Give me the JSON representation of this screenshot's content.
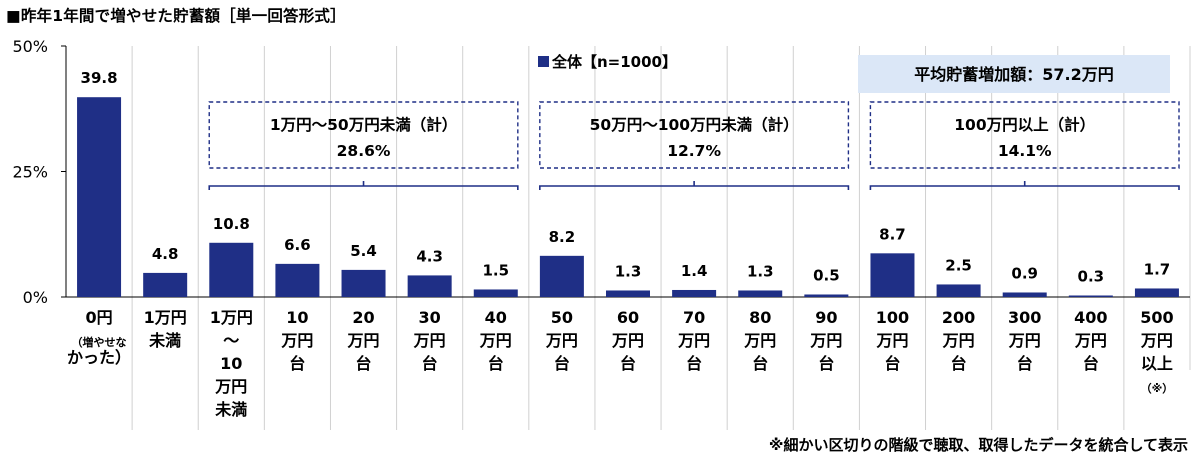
{
  "title": "■昨年1年間で増やせた貯蓄額［単一回答形式］",
  "footnote": "※細かい区切りの階級で聴取、取得したデータを統合して表示",
  "average_label": "平均貯蓄増加額：57.2万円",
  "colors": {
    "bar": "#1f2f86",
    "bracket": "#1f2f86",
    "average_box": "#dbe7f7",
    "grid_line": "#000000"
  },
  "chart_data": {
    "type": "bar",
    "series": [
      {
        "name": "全体【n=1000】",
        "values": [
          39.8,
          4.8,
          10.8,
          6.6,
          5.4,
          4.3,
          1.5,
          8.2,
          1.3,
          1.4,
          1.3,
          0.5,
          8.7,
          2.5,
          0.9,
          0.3,
          1.7
        ]
      }
    ],
    "categories": [
      [
        "0円",
        "（増やせな",
        "かった）"
      ],
      [
        "1万円",
        "未満"
      ],
      [
        "1万円",
        "～",
        "10",
        "万円",
        "未満"
      ],
      [
        "10",
        "万円",
        "台"
      ],
      [
        "20",
        "万円",
        "台"
      ],
      [
        "30",
        "万円",
        "台"
      ],
      [
        "40",
        "万円",
        "台"
      ],
      [
        "50",
        "万円",
        "台"
      ],
      [
        "60",
        "万円",
        "台"
      ],
      [
        "70",
        "万円",
        "台"
      ],
      [
        "80",
        "万円",
        "台"
      ],
      [
        "90",
        "万円",
        "台"
      ],
      [
        "100",
        "万円",
        "台"
      ],
      [
        "200",
        "万円",
        "台"
      ],
      [
        "300",
        "万円",
        "台"
      ],
      [
        "400",
        "万円",
        "台"
      ],
      [
        "500",
        "万円",
        "以上",
        "（※）"
      ]
    ],
    "yticks": [
      "0%",
      "25%",
      "50%"
    ],
    "ylim": [
      0,
      50
    ],
    "groups": [
      {
        "label": "1万円～50万円未満（計）",
        "value": "28.6%",
        "from": 2,
        "to": 6
      },
      {
        "label": "50万円～100万円未満（計）",
        "value": "12.7%",
        "from": 7,
        "to": 11
      },
      {
        "label": "100万円以上（計）",
        "value": "14.1%",
        "from": 12,
        "to": 16
      }
    ]
  }
}
